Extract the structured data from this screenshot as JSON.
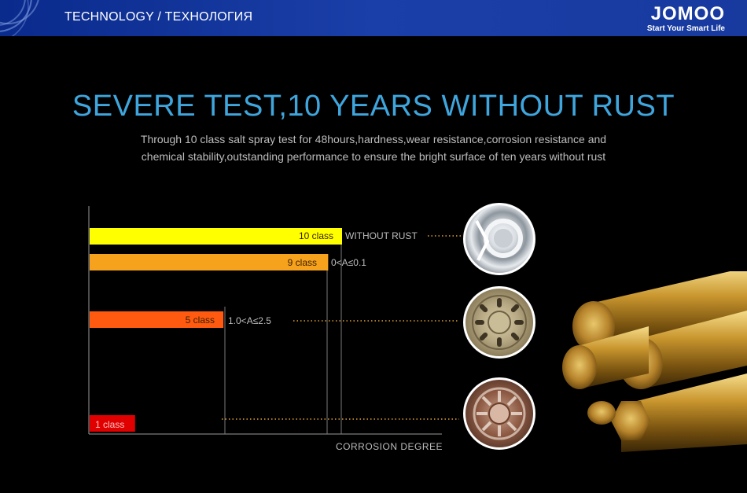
{
  "header": {
    "title": "TECHNOLOGY / ТЕХНОЛОГИЯ",
    "brand": "JOMOO",
    "tagline": "Start Your Smart Life"
  },
  "headline": "SEVERE TEST,10 YEARS WITHOUT RUST",
  "subline": [
    "Through 10 class salt spray test for 48hours,hardness,wear resistance,corrosion resistance and",
    "chemical stability,outstanding performance to ensure the bright surface of ten years without rust"
  ],
  "colors": {
    "header_bg": "#1a3fa8",
    "headline": "#3fa6dd",
    "bar_10": "#ffff00",
    "bar_9": "#f7a21c",
    "bar_5": "#ff5a10",
    "bar_1": "#e00000"
  },
  "chart_data": {
    "type": "bar",
    "orientation": "horizontal",
    "categories": [
      "10 class",
      "9 class",
      "5 class",
      "1 class"
    ],
    "values": [
      10,
      9,
      5,
      1
    ],
    "annotations": [
      "WITHOUT RUST",
      "0<A≤0.1",
      "1.0<A≤2.5",
      ""
    ],
    "xlabel": "CORROSION DEGREE",
    "xlim": [
      0,
      10
    ],
    "grid": false,
    "legend": "none"
  },
  "icons": [
    "chrome-disc-icon",
    "brass-strainer-icon",
    "corroded-strainer-icon",
    "gold-rods-icon"
  ]
}
